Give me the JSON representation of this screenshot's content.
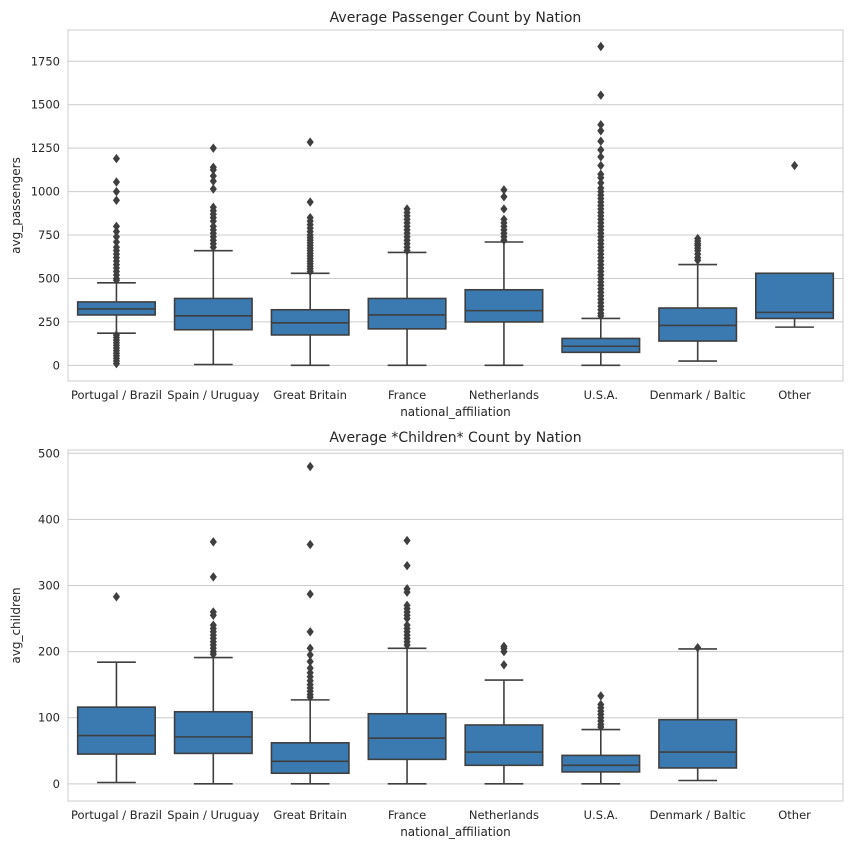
{
  "chart_data": [
    {
      "type": "box",
      "title": "Average Passenger Count by Nation",
      "xlabel": "national_affiliation",
      "ylabel": "avg_passengers",
      "ylim": [
        -90,
        1930
      ],
      "yticks": [
        0,
        250,
        500,
        750,
        1000,
        1250,
        1500,
        1750
      ],
      "grid": "horizontal",
      "box_color": "#3a7ab0",
      "categories": [
        "Portugal / Brazil",
        "Spain / Uruguay",
        "Great Britain",
        "France",
        "Netherlands",
        "U.S.A.",
        "Denmark / Baltic",
        "Other"
      ],
      "boxes": [
        {
          "q1": 290,
          "median": 325,
          "q3": 365,
          "whisker_low": 185,
          "whisker_high": 475,
          "outliers": [
            1190,
            1055,
            1000,
            950,
            800,
            770,
            740,
            710,
            680,
            660,
            640,
            620,
            600,
            580,
            560,
            540,
            520,
            500,
            490,
            175,
            160,
            145,
            130,
            115,
            100,
            85,
            70,
            55,
            40,
            25,
            10
          ]
        },
        {
          "q1": 205,
          "median": 285,
          "q3": 385,
          "whisker_low": 5,
          "whisker_high": 660,
          "outliers": [
            1250,
            1140,
            1125,
            1090,
            1060,
            1015,
            910,
            890,
            870,
            850,
            830,
            800,
            780,
            760,
            740,
            720,
            700,
            680
          ]
        },
        {
          "q1": 175,
          "median": 245,
          "q3": 320,
          "whisker_low": 0,
          "whisker_high": 530,
          "outliers": [
            1285,
            940,
            850,
            830,
            810,
            790,
            770,
            750,
            735,
            720,
            705,
            690,
            675,
            660,
            645,
            630,
            615,
            600,
            585,
            570,
            555,
            540
          ]
        },
        {
          "q1": 210,
          "median": 290,
          "q3": 385,
          "whisker_low": 0,
          "whisker_high": 650,
          "outliers": [
            900,
            880,
            860,
            840,
            820,
            800,
            780,
            760,
            740,
            720,
            700,
            680,
            660
          ]
        },
        {
          "q1": 250,
          "median": 315,
          "q3": 435,
          "whisker_low": 0,
          "whisker_high": 710,
          "outliers": [
            1010,
            970,
            900,
            840,
            820,
            800,
            780,
            760,
            740,
            720
          ]
        },
        {
          "q1": 75,
          "median": 110,
          "q3": 155,
          "whisker_low": 0,
          "whisker_high": 270,
          "outliers": [
            1835,
            1555,
            1385,
            1350,
            1290,
            1240,
            1200,
            1150,
            1100,
            1080,
            1050,
            1020,
            1000,
            980,
            960,
            940,
            920,
            900,
            880,
            860,
            840,
            820,
            800,
            780,
            760,
            740,
            720,
            700,
            680,
            660,
            640,
            620,
            600,
            580,
            560,
            540,
            520,
            500,
            480,
            460,
            440,
            420,
            400,
            380,
            360,
            340,
            320,
            300,
            285
          ]
        },
        {
          "q1": 140,
          "median": 230,
          "q3": 330,
          "whisker_low": 25,
          "whisker_high": 580,
          "outliers": [
            730,
            715,
            700,
            690,
            675,
            660,
            640,
            620,
            605
          ]
        },
        {
          "q1": 270,
          "median": 305,
          "q3": 530,
          "whisker_low": 220,
          "whisker_high": 530,
          "outliers": [
            1150
          ]
        }
      ]
    },
    {
      "type": "box",
      "title": "Average *Children* Count by Nation",
      "xlabel": "national_affiliation",
      "ylabel": "avg_children",
      "ylim": [
        -26,
        505
      ],
      "yticks": [
        0,
        100,
        200,
        300,
        400,
        500
      ],
      "grid": "horizontal",
      "box_color": "#3a7ab0",
      "categories": [
        "Portugal / Brazil",
        "Spain / Uruguay",
        "Great Britain",
        "France",
        "Netherlands",
        "U.S.A.",
        "Denmark / Baltic",
        "Other"
      ],
      "boxes": [
        {
          "q1": 45,
          "median": 73,
          "q3": 116,
          "whisker_low": 2,
          "whisker_high": 184,
          "outliers": [
            283
          ]
        },
        {
          "q1": 46,
          "median": 71,
          "q3": 109,
          "whisker_low": 0,
          "whisker_high": 191,
          "outliers": [
            366,
            313,
            260,
            255,
            240,
            235,
            230,
            225,
            220,
            215,
            210,
            205,
            200,
            196
          ]
        },
        {
          "q1": 16,
          "median": 34,
          "q3": 62,
          "whisker_low": 0,
          "whisker_high": 127,
          "outliers": [
            480,
            362,
            287,
            230,
            205,
            195,
            185,
            175,
            168,
            162,
            156,
            150,
            145,
            140,
            135,
            131
          ]
        },
        {
          "q1": 37,
          "median": 69,
          "q3": 106,
          "whisker_low": 0,
          "whisker_high": 205,
          "outliers": [
            368,
            330,
            295,
            290,
            270,
            265,
            260,
            255,
            250,
            240,
            235,
            230,
            225,
            220,
            215,
            210
          ]
        },
        {
          "q1": 28,
          "median": 48,
          "q3": 89,
          "whisker_low": 0,
          "whisker_high": 157,
          "outliers": [
            208,
            205,
            200,
            180
          ]
        },
        {
          "q1": 18,
          "median": 28,
          "q3": 43,
          "whisker_low": 0,
          "whisker_high": 82,
          "outliers": [
            133,
            120,
            115,
            110,
            105,
            100,
            95,
            90,
            86
          ]
        },
        {
          "q1": 24,
          "median": 48,
          "q3": 97,
          "whisker_low": 5,
          "whisker_high": 204,
          "outliers": [
            206
          ]
        },
        {
          "q1": null,
          "median": null,
          "q3": null,
          "whisker_low": null,
          "whisker_high": null,
          "outliers": []
        }
      ]
    }
  ]
}
